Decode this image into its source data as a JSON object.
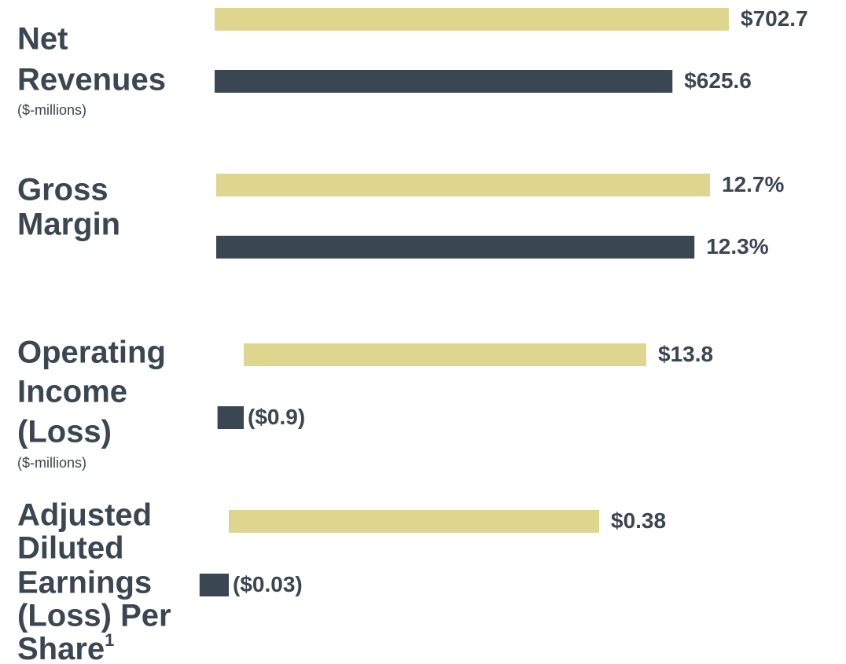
{
  "chart_data": [
    {
      "type": "bar",
      "orientation": "horizontal",
      "title": [
        "Net",
        "Revenues"
      ],
      "subtitle": "($-millions)",
      "values": [
        702.7,
        625.6
      ],
      "value_labels": [
        "$702.7",
        "$625.6"
      ],
      "colors": [
        "#ded58e",
        "#3a4651"
      ]
    },
    {
      "type": "bar",
      "orientation": "horizontal",
      "title": [
        "Gross",
        "Margin"
      ],
      "values": [
        12.7,
        12.3
      ],
      "value_labels": [
        "12.7%",
        "12.3%"
      ],
      "colors": [
        "#ded58e",
        "#3a4651"
      ]
    },
    {
      "type": "bar",
      "orientation": "horizontal",
      "title": [
        "Operating",
        "Income",
        "(Loss)"
      ],
      "subtitle": "($-millions)",
      "values": [
        13.8,
        -0.9
      ],
      "value_labels": [
        "$13.8",
        "($0.9)"
      ],
      "colors": [
        "#ded58e",
        "#3a4651"
      ]
    },
    {
      "type": "bar",
      "orientation": "horizontal",
      "title": [
        "Adjusted",
        "Diluted",
        "Earnings",
        "(Loss) Per",
        "Share"
      ],
      "footnote_marker": "1",
      "values": [
        0.38,
        -0.03
      ],
      "value_labels": [
        "$0.38",
        "($0.03)"
      ],
      "colors": [
        "#ded58e",
        "#3a4651"
      ]
    }
  ]
}
